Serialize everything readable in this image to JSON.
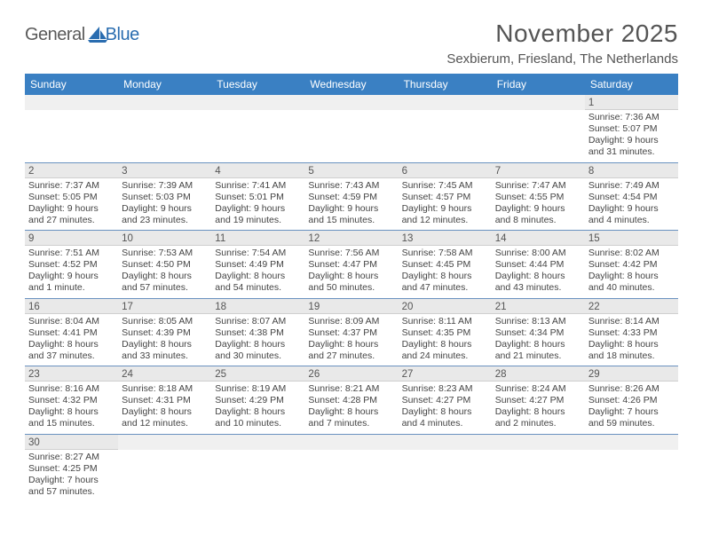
{
  "logo": {
    "general": "General",
    "blue": "Blue"
  },
  "header": {
    "month_title": "November 2025",
    "location": "Sexbierum, Friesland, The Netherlands"
  },
  "colors": {
    "header_bg": "#3a80c3",
    "header_text": "#ffffff",
    "daynum_bg": "#e9e9e9",
    "row_border": "#6a92c0",
    "body_text": "#444"
  },
  "day_names": [
    "Sunday",
    "Monday",
    "Tuesday",
    "Wednesday",
    "Thursday",
    "Friday",
    "Saturday"
  ],
  "weeks": [
    [
      {
        "empty": true
      },
      {
        "empty": true
      },
      {
        "empty": true
      },
      {
        "empty": true
      },
      {
        "empty": true
      },
      {
        "empty": true
      },
      {
        "num": "1",
        "sunrise": "Sunrise: 7:36 AM",
        "sunset": "Sunset: 5:07 PM",
        "daylight": "Daylight: 9 hours and 31 minutes."
      }
    ],
    [
      {
        "num": "2",
        "sunrise": "Sunrise: 7:37 AM",
        "sunset": "Sunset: 5:05 PM",
        "daylight": "Daylight: 9 hours and 27 minutes."
      },
      {
        "num": "3",
        "sunrise": "Sunrise: 7:39 AM",
        "sunset": "Sunset: 5:03 PM",
        "daylight": "Daylight: 9 hours and 23 minutes."
      },
      {
        "num": "4",
        "sunrise": "Sunrise: 7:41 AM",
        "sunset": "Sunset: 5:01 PM",
        "daylight": "Daylight: 9 hours and 19 minutes."
      },
      {
        "num": "5",
        "sunrise": "Sunrise: 7:43 AM",
        "sunset": "Sunset: 4:59 PM",
        "daylight": "Daylight: 9 hours and 15 minutes."
      },
      {
        "num": "6",
        "sunrise": "Sunrise: 7:45 AM",
        "sunset": "Sunset: 4:57 PM",
        "daylight": "Daylight: 9 hours and 12 minutes."
      },
      {
        "num": "7",
        "sunrise": "Sunrise: 7:47 AM",
        "sunset": "Sunset: 4:55 PM",
        "daylight": "Daylight: 9 hours and 8 minutes."
      },
      {
        "num": "8",
        "sunrise": "Sunrise: 7:49 AM",
        "sunset": "Sunset: 4:54 PM",
        "daylight": "Daylight: 9 hours and 4 minutes."
      }
    ],
    [
      {
        "num": "9",
        "sunrise": "Sunrise: 7:51 AM",
        "sunset": "Sunset: 4:52 PM",
        "daylight": "Daylight: 9 hours and 1 minute."
      },
      {
        "num": "10",
        "sunrise": "Sunrise: 7:53 AM",
        "sunset": "Sunset: 4:50 PM",
        "daylight": "Daylight: 8 hours and 57 minutes."
      },
      {
        "num": "11",
        "sunrise": "Sunrise: 7:54 AM",
        "sunset": "Sunset: 4:49 PM",
        "daylight": "Daylight: 8 hours and 54 minutes."
      },
      {
        "num": "12",
        "sunrise": "Sunrise: 7:56 AM",
        "sunset": "Sunset: 4:47 PM",
        "daylight": "Daylight: 8 hours and 50 minutes."
      },
      {
        "num": "13",
        "sunrise": "Sunrise: 7:58 AM",
        "sunset": "Sunset: 4:45 PM",
        "daylight": "Daylight: 8 hours and 47 minutes."
      },
      {
        "num": "14",
        "sunrise": "Sunrise: 8:00 AM",
        "sunset": "Sunset: 4:44 PM",
        "daylight": "Daylight: 8 hours and 43 minutes."
      },
      {
        "num": "15",
        "sunrise": "Sunrise: 8:02 AM",
        "sunset": "Sunset: 4:42 PM",
        "daylight": "Daylight: 8 hours and 40 minutes."
      }
    ],
    [
      {
        "num": "16",
        "sunrise": "Sunrise: 8:04 AM",
        "sunset": "Sunset: 4:41 PM",
        "daylight": "Daylight: 8 hours and 37 minutes."
      },
      {
        "num": "17",
        "sunrise": "Sunrise: 8:05 AM",
        "sunset": "Sunset: 4:39 PM",
        "daylight": "Daylight: 8 hours and 33 minutes."
      },
      {
        "num": "18",
        "sunrise": "Sunrise: 8:07 AM",
        "sunset": "Sunset: 4:38 PM",
        "daylight": "Daylight: 8 hours and 30 minutes."
      },
      {
        "num": "19",
        "sunrise": "Sunrise: 8:09 AM",
        "sunset": "Sunset: 4:37 PM",
        "daylight": "Daylight: 8 hours and 27 minutes."
      },
      {
        "num": "20",
        "sunrise": "Sunrise: 8:11 AM",
        "sunset": "Sunset: 4:35 PM",
        "daylight": "Daylight: 8 hours and 24 minutes."
      },
      {
        "num": "21",
        "sunrise": "Sunrise: 8:13 AM",
        "sunset": "Sunset: 4:34 PM",
        "daylight": "Daylight: 8 hours and 21 minutes."
      },
      {
        "num": "22",
        "sunrise": "Sunrise: 8:14 AM",
        "sunset": "Sunset: 4:33 PM",
        "daylight": "Daylight: 8 hours and 18 minutes."
      }
    ],
    [
      {
        "num": "23",
        "sunrise": "Sunrise: 8:16 AM",
        "sunset": "Sunset: 4:32 PM",
        "daylight": "Daylight: 8 hours and 15 minutes."
      },
      {
        "num": "24",
        "sunrise": "Sunrise: 8:18 AM",
        "sunset": "Sunset: 4:31 PM",
        "daylight": "Daylight: 8 hours and 12 minutes."
      },
      {
        "num": "25",
        "sunrise": "Sunrise: 8:19 AM",
        "sunset": "Sunset: 4:29 PM",
        "daylight": "Daylight: 8 hours and 10 minutes."
      },
      {
        "num": "26",
        "sunrise": "Sunrise: 8:21 AM",
        "sunset": "Sunset: 4:28 PM",
        "daylight": "Daylight: 8 hours and 7 minutes."
      },
      {
        "num": "27",
        "sunrise": "Sunrise: 8:23 AM",
        "sunset": "Sunset: 4:27 PM",
        "daylight": "Daylight: 8 hours and 4 minutes."
      },
      {
        "num": "28",
        "sunrise": "Sunrise: 8:24 AM",
        "sunset": "Sunset: 4:27 PM",
        "daylight": "Daylight: 8 hours and 2 minutes."
      },
      {
        "num": "29",
        "sunrise": "Sunrise: 8:26 AM",
        "sunset": "Sunset: 4:26 PM",
        "daylight": "Daylight: 7 hours and 59 minutes."
      }
    ],
    [
      {
        "num": "30",
        "sunrise": "Sunrise: 8:27 AM",
        "sunset": "Sunset: 4:25 PM",
        "daylight": "Daylight: 7 hours and 57 minutes."
      },
      {
        "empty": true
      },
      {
        "empty": true
      },
      {
        "empty": true
      },
      {
        "empty": true
      },
      {
        "empty": true
      },
      {
        "empty": true
      }
    ]
  ]
}
